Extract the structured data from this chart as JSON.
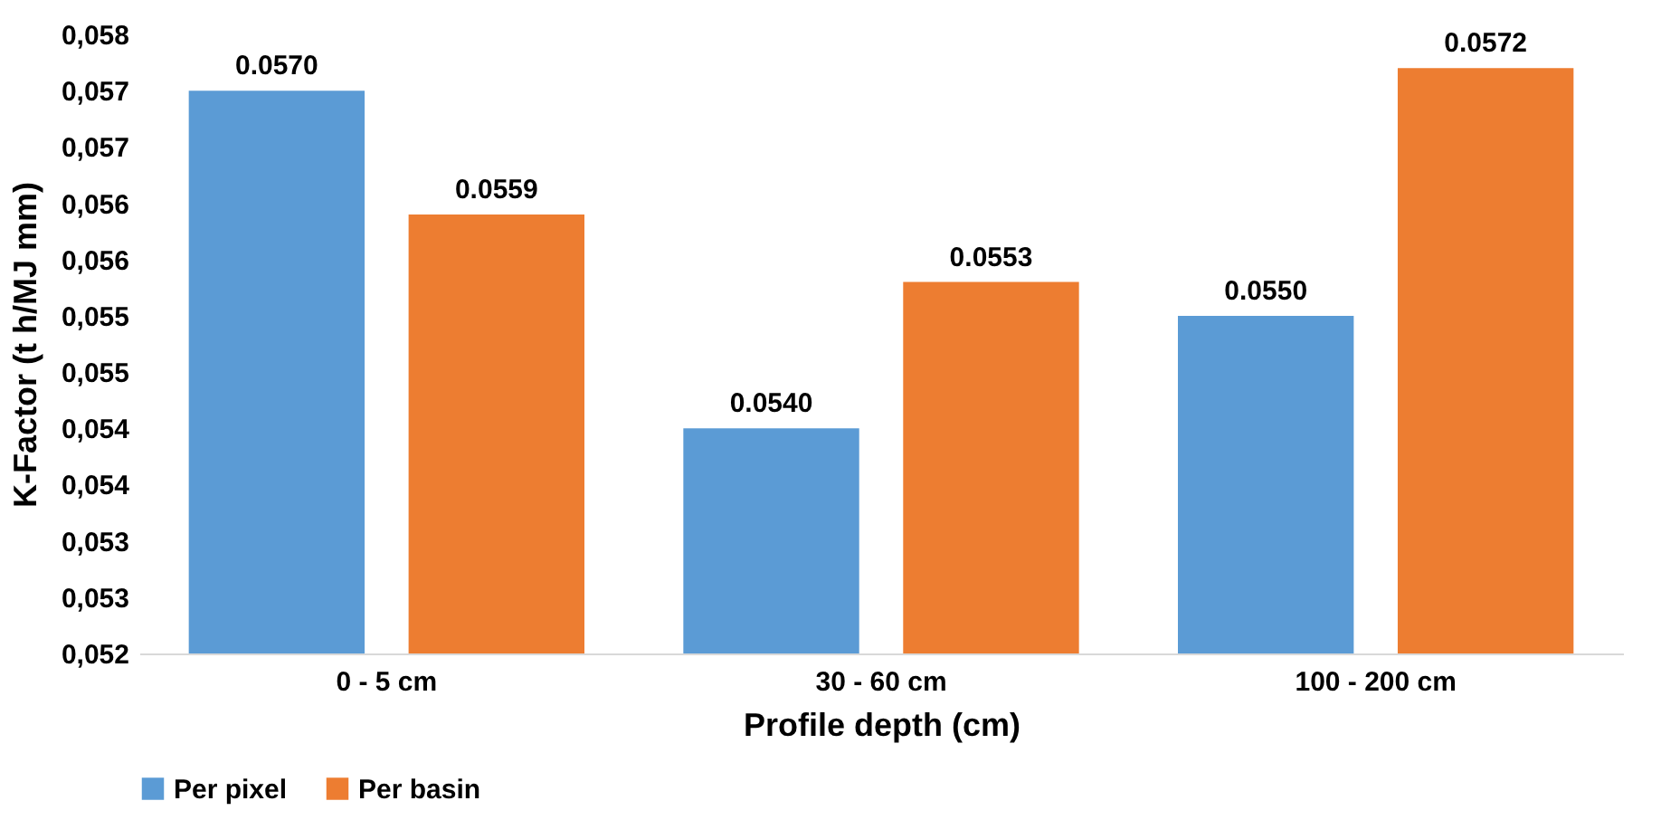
{
  "chart_data": {
    "type": "bar",
    "xlabel": "Profile depth (cm)",
    "ylabel": "K-Factor (t h/MJ mm)",
    "categories": [
      "0 - 5 cm",
      "30 - 60 cm",
      "100 - 200 cm"
    ],
    "series": [
      {
        "name": "Per pixel",
        "color": "#5b9bd5",
        "values": [
          0.057,
          0.054,
          0.055
        ],
        "value_labels": [
          "0.0570",
          "0.0540",
          "0.0550"
        ]
      },
      {
        "name": "Per basin",
        "color": "#ed7d31",
        "values": [
          0.0559,
          0.0553,
          0.0572
        ],
        "value_labels": [
          "0.0559",
          "0.0553",
          "0.0572"
        ]
      }
    ],
    "ylim": [
      0.052,
      0.0575
    ],
    "yticks": [
      {
        "value": 0.052,
        "label": "0,052"
      },
      {
        "value": 0.0525,
        "label": "0,053"
      },
      {
        "value": 0.053,
        "label": "0,053"
      },
      {
        "value": 0.0535,
        "label": "0,054"
      },
      {
        "value": 0.054,
        "label": "0,054"
      },
      {
        "value": 0.0545,
        "label": "0,055"
      },
      {
        "value": 0.055,
        "label": "0,055"
      },
      {
        "value": 0.0555,
        "label": "0,056"
      },
      {
        "value": 0.056,
        "label": "0,056"
      },
      {
        "value": 0.0565,
        "label": "0,057"
      },
      {
        "value": 0.057,
        "label": "0,057"
      },
      {
        "value": 0.0575,
        "label": "0,058"
      }
    ],
    "grid": false,
    "legend": "bottom"
  }
}
